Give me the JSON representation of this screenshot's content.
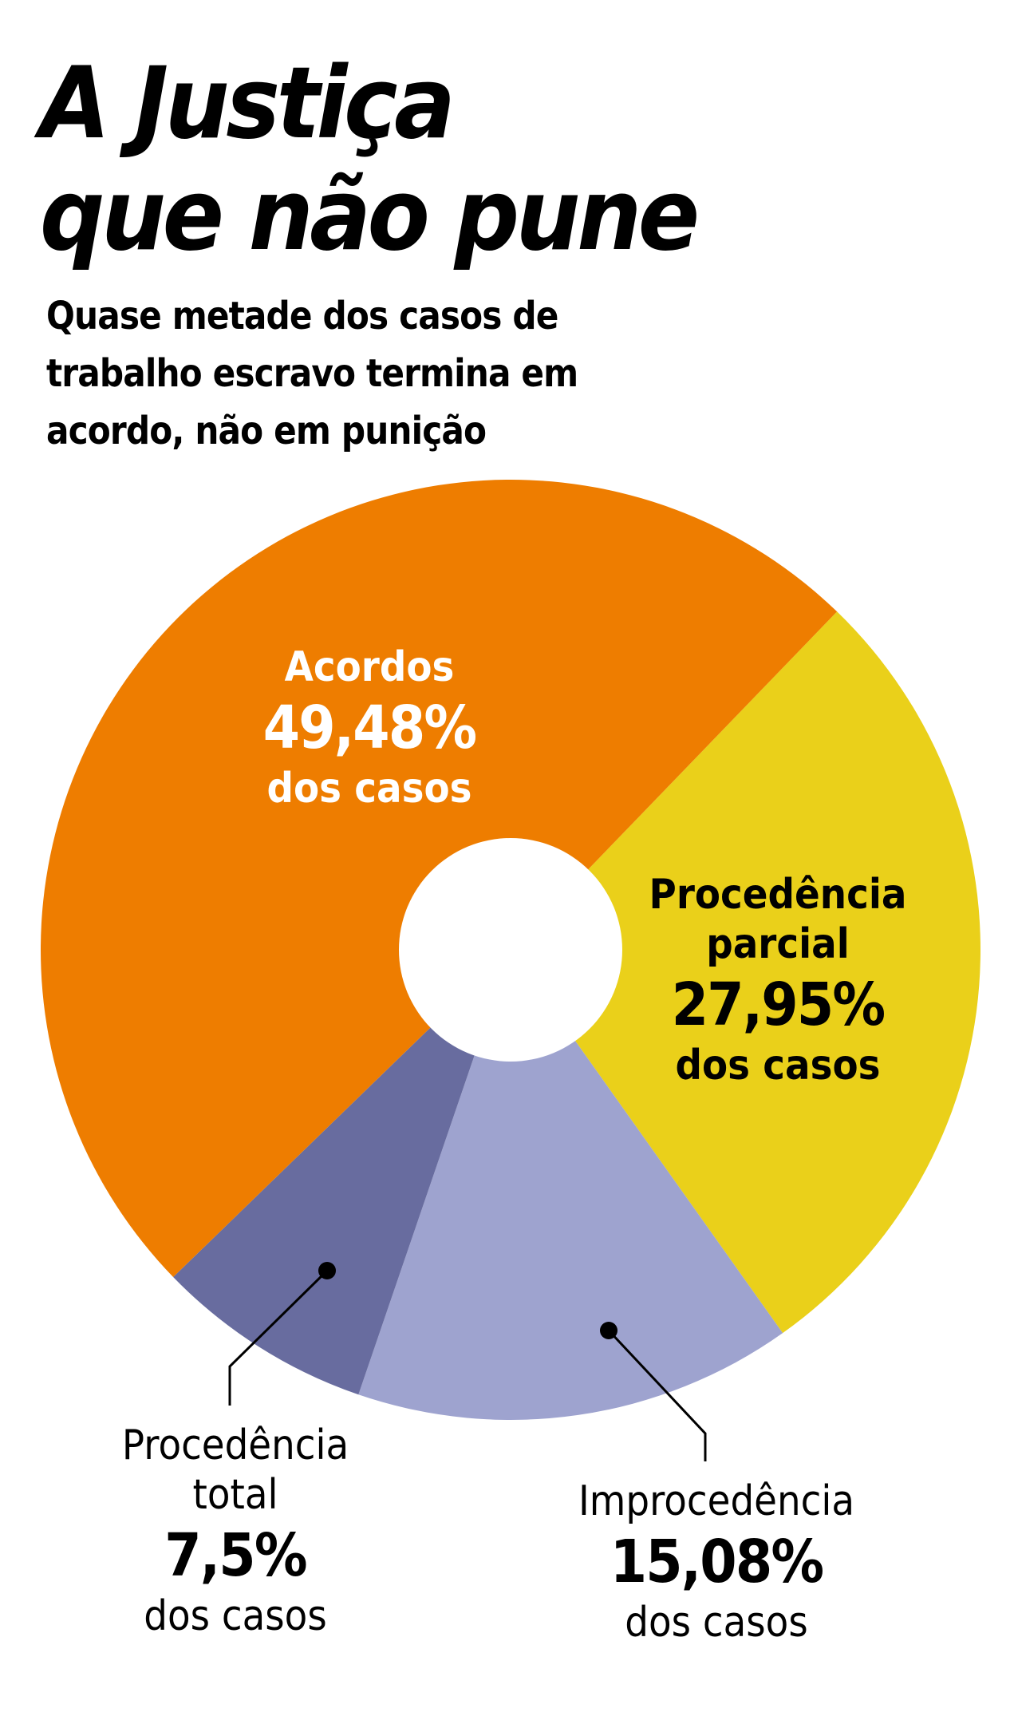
{
  "header": {
    "title_line1": "A Justiça",
    "title_line2": "que não pune",
    "subtitle": "Quase metade dos casos de trabalho escravo termina em acordo, não em punição"
  },
  "labels": {
    "acordos": {
      "name": "Acordos",
      "pct": "49,48%",
      "sub": "dos casos"
    },
    "parcial": {
      "name1": "Procedência",
      "name2": "parcial",
      "pct": "27,95%",
      "sub": "dos casos"
    },
    "total": {
      "name1": "Procedência",
      "name2": "total",
      "pct": "7,5%",
      "sub": "dos casos"
    },
    "improcedencia": {
      "name": "Improcedência",
      "pct": "15,08%",
      "sub": "dos casos"
    }
  },
  "colors": {
    "acordos": "#ee7d00",
    "parcial": "#ead01a",
    "improcedencia": "#9ea3cf",
    "total": "#686c9f"
  },
  "chart_data": {
    "type": "pie",
    "variant": "donut",
    "title": "A Justiça que não pune",
    "subtitle": "Quase metade dos casos de trabalho escravo termina em acordo, não em punição",
    "categories": [
      "Acordos",
      "Procedência parcial",
      "Improcedência",
      "Procedência total"
    ],
    "values": [
      49.48,
      27.95,
      15.08,
      7.5
    ],
    "unit": "% dos casos",
    "colors": [
      "#ee7d00",
      "#ead01a",
      "#9ea3cf",
      "#686c9f"
    ],
    "legend": "none (direct labels)"
  }
}
